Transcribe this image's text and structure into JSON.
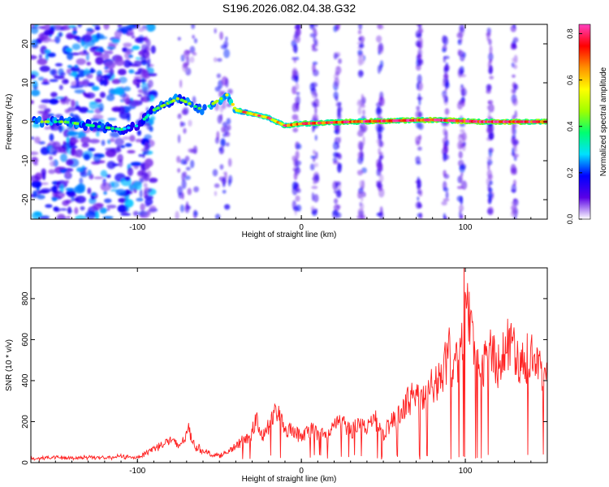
{
  "figure": {
    "title": "S196.2026.082.04.38.G32"
  },
  "chart_data": [
    {
      "type": "heatmap",
      "xlabel": "Height of straight line (km)",
      "ylabel": "Frequency (Hz)",
      "xlim": [
        -165,
        150
      ],
      "ylim": [
        -25,
        25
      ],
      "xticks": [
        -100,
        0,
        100
      ],
      "yticks": [
        -20,
        -10,
        0,
        10,
        20
      ],
      "colorbar": {
        "label": "Normalized spectral amplitude",
        "range": [
          0.0,
          0.84
        ],
        "ticks": [
          0.0,
          0.2,
          0.4,
          0.6,
          0.8
        ],
        "colors": [
          "#ffffff",
          "#5a00e6",
          "#0000ff",
          "#00e0ff",
          "#00ff70",
          "#a0ff00",
          "#ffff00",
          "#ff9000",
          "#ff0000",
          "#ff40c0"
        ]
      },
      "ridge": [
        {
          "x": -145,
          "f": 0.0,
          "a": 0.45
        },
        {
          "x": -110,
          "f": -2.0,
          "a": 0.35
        },
        {
          "x": -100,
          "f": -1.0,
          "a": 0.3
        },
        {
          "x": -90,
          "f": 3.0,
          "a": 0.4
        },
        {
          "x": -75,
          "f": 6.0,
          "a": 0.45
        },
        {
          "x": -60,
          "f": 3.0,
          "a": 0.4
        },
        {
          "x": -45,
          "f": 7.0,
          "a": 0.5
        },
        {
          "x": -40,
          "f": 3.0,
          "a": 0.55
        },
        {
          "x": -20,
          "f": 1.0,
          "a": 0.6
        },
        {
          "x": -10,
          "f": -1.0,
          "a": 0.65
        },
        {
          "x": 0,
          "f": -0.5,
          "a": 0.7
        },
        {
          "x": 30,
          "f": 0.0,
          "a": 0.75
        },
        {
          "x": 80,
          "f": 0.5,
          "a": 0.8
        },
        {
          "x": 110,
          "f": 0.0,
          "a": 0.8
        },
        {
          "x": 150,
          "f": 0.0,
          "a": 0.8
        }
      ]
    },
    {
      "type": "line",
      "xlabel": "Height of straight line (km)",
      "ylabel": "SNR (10 * v/v)",
      "xlim": [
        -165,
        150
      ],
      "ylim": [
        0,
        950
      ],
      "xticks": [
        -100,
        0,
        100
      ],
      "yticks": [
        0,
        200,
        400,
        600,
        800
      ],
      "color": "#ff2020",
      "series": [
        {
          "name": "SNR",
          "x": [
            -165,
            -150,
            -140,
            -130,
            -120,
            -110,
            -100,
            -90,
            -85,
            -80,
            -75,
            -70,
            -69,
            -65,
            -60,
            -55,
            -50,
            -45,
            -40,
            -35,
            -30,
            -27,
            -25,
            -20,
            -15,
            -12,
            -10,
            -5,
            0,
            5,
            10,
            15,
            20,
            25,
            30,
            35,
            40,
            45,
            50,
            55,
            60,
            65,
            70,
            75,
            80,
            85,
            88,
            90,
            92,
            95,
            98,
            99,
            100,
            101,
            102,
            105,
            110,
            115,
            120,
            125,
            130,
            135,
            140,
            145,
            150
          ],
          "y": [
            20,
            25,
            22,
            28,
            22,
            30,
            25,
            70,
            90,
            110,
            80,
            130,
            170,
            80,
            60,
            40,
            35,
            50,
            80,
            110,
            150,
            220,
            120,
            180,
            240,
            220,
            150,
            160,
            120,
            160,
            150,
            130,
            180,
            210,
            150,
            200,
            170,
            220,
            130,
            200,
            230,
            300,
            350,
            300,
            380,
            410,
            480,
            540,
            440,
            500,
            600,
            760,
            920,
            850,
            700,
            580,
            450,
            560,
            480,
            560,
            580,
            470,
            560,
            440,
            500
          ]
        }
      ]
    }
  ]
}
